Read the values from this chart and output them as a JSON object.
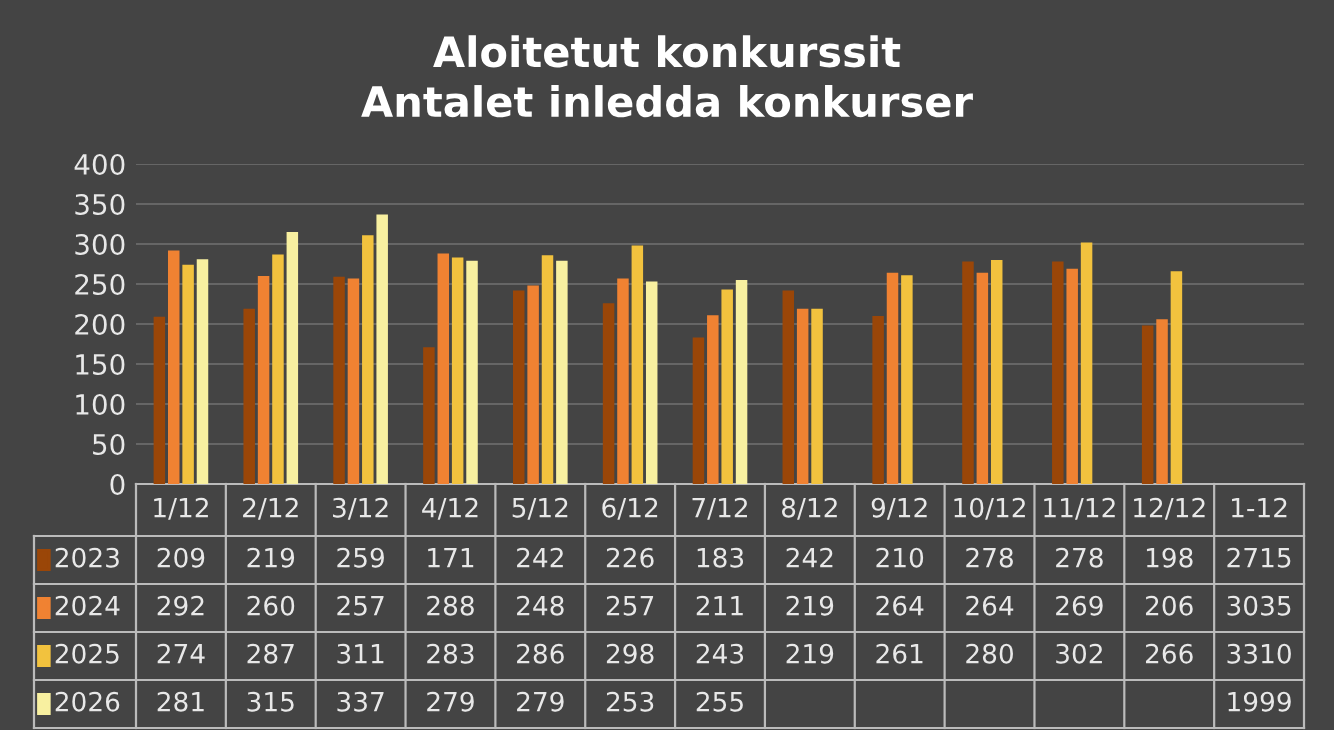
{
  "chart_data": {
    "type": "bar",
    "title": "Aloitetut konkurssit\nAntalet inledda konkurser",
    "categories": [
      "1/12",
      "2/12",
      "3/12",
      "4/12",
      "5/12",
      "6/12",
      "7/12",
      "8/12",
      "9/12",
      "10/12",
      "11/12",
      "12/12",
      "1-12"
    ],
    "series": [
      {
        "name": "2023",
        "color": "#9a4608",
        "values": [
          209,
          219,
          259,
          171,
          242,
          226,
          183,
          242,
          210,
          278,
          278,
          198,
          null
        ],
        "value_labels": [
          "209",
          "219",
          "259",
          "171",
          "242",
          "226",
          "183",
          "242",
          "210",
          "278",
          "278",
          "198",
          "2715"
        ]
      },
      {
        "name": "2024",
        "color": "#f08232",
        "values": [
          292,
          260,
          257,
          288,
          248,
          257,
          211,
          219,
          264,
          264,
          269,
          206,
          null
        ],
        "value_labels": [
          "292",
          "260",
          "257",
          "288",
          "248",
          "257",
          "211",
          "219",
          "264",
          "264",
          "269",
          "206",
          "3035"
        ]
      },
      {
        "name": "2025",
        "color": "#f2c23e",
        "values": [
          274,
          287,
          311,
          283,
          286,
          298,
          243,
          219,
          261,
          280,
          302,
          266,
          null
        ],
        "value_labels": [
          "274",
          "287",
          "311",
          "283",
          "286",
          "298",
          "243",
          "219",
          "261",
          "280",
          "302",
          "266",
          "3310"
        ]
      },
      {
        "name": "2026",
        "color": "#f8f0a0",
        "values": [
          281,
          315,
          337,
          279,
          279,
          253,
          255,
          null,
          null,
          null,
          null,
          null,
          null
        ],
        "value_labels": [
          "281",
          "315",
          "337",
          "279",
          "279",
          "253",
          "255",
          null,
          null,
          null,
          null,
          null,
          "1999"
        ]
      }
    ],
    "ylim": [
      0,
      400
    ],
    "yticks": [
      0,
      50,
      100,
      150,
      200,
      250,
      300,
      350,
      400
    ],
    "grid": "y",
    "legend": "bottom left"
  }
}
